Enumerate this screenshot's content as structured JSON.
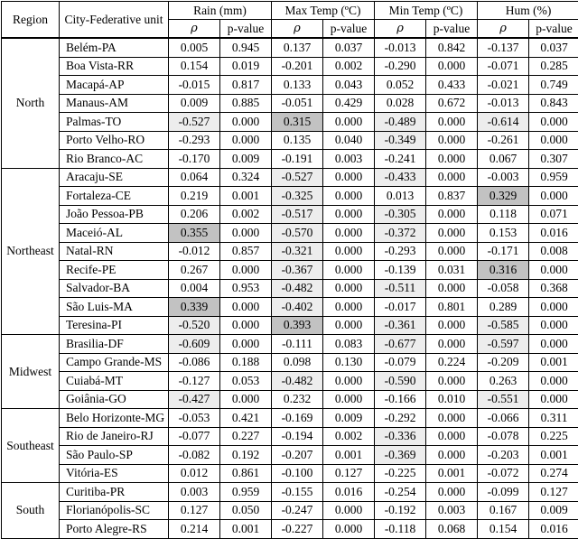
{
  "table": {
    "headers": {
      "region": "Region",
      "city": "City-Federative unit",
      "groups": [
        "Rain (mm)",
        "Max Temp (ºC)",
        "Min Temp (ºC)",
        "Hum (%)"
      ],
      "sub": {
        "rho": "ρ",
        "p": "p-value"
      }
    },
    "colors": {
      "highlight_negative_rho": "#ededed",
      "highlight_positive_rho": "#c2c2c2",
      "border": "#000000",
      "background": "#ffffff"
    },
    "highlight_rule": "rho cells with value <= -0.3 shaded light gray, value >= 0.3 shaded dark gray",
    "regions": [
      {
        "name": "North",
        "rows": [
          {
            "city": "Belém-PA",
            "values": [
              "0.005",
              "0.945",
              "0.137",
              "0.037",
              "-0.013",
              "0.842",
              "-0.137",
              "0.037"
            ]
          },
          {
            "city": "Boa Vista-RR",
            "values": [
              "0.154",
              "0.019",
              "-0.201",
              "0.002",
              "-0.290",
              "0.000",
              "-0.071",
              "0.285"
            ]
          },
          {
            "city": "Macapá-AP",
            "values": [
              "-0.015",
              "0.817",
              "0.133",
              "0.043",
              "0.052",
              "0.433",
              "-0.021",
              "0.749"
            ]
          },
          {
            "city": "Manaus-AM",
            "values": [
              "0.009",
              "0.885",
              "-0.051",
              "0.429",
              "0.028",
              "0.672",
              "-0.013",
              "0.843"
            ]
          },
          {
            "city": "Palmas-TO",
            "values": [
              "-0.527",
              "0.000",
              "0.315",
              "0.000",
              "-0.489",
              "0.000",
              "-0.614",
              "0.000"
            ]
          },
          {
            "city": "Porto Velho-RO",
            "values": [
              "-0.293",
              "0.000",
              "0.135",
              "0.040",
              "-0.349",
              "0.000",
              "-0.261",
              "0.000"
            ]
          },
          {
            "city": "Rio Branco-AC",
            "values": [
              "-0.170",
              "0.009",
              "-0.191",
              "0.003",
              "-0.241",
              "0.000",
              "0.067",
              "0.307"
            ]
          }
        ]
      },
      {
        "name": "Northeast",
        "rows": [
          {
            "city": "Aracaju-SE",
            "values": [
              "0.064",
              "0.324",
              "-0.527",
              "0.000",
              "-0.433",
              "0.000",
              "-0.003",
              "0.959"
            ]
          },
          {
            "city": "Fortaleza-CE",
            "values": [
              "0.219",
              "0.001",
              "-0.325",
              "0.000",
              "0.013",
              "0.837",
              "0.329",
              "0.000"
            ]
          },
          {
            "city": "João Pessoa-PB",
            "values": [
              "0.206",
              "0.002",
              "-0.517",
              "0.000",
              "-0.305",
              "0.000",
              "0.118",
              "0.071"
            ]
          },
          {
            "city": "Maceió-AL",
            "values": [
              "0.355",
              "0.000",
              "-0.570",
              "0.000",
              "-0.372",
              "0.000",
              "0.153",
              "0.016"
            ]
          },
          {
            "city": "Natal-RN",
            "values": [
              "-0.012",
              "0.857",
              "-0.321",
              "0.000",
              "-0.293",
              "0.000",
              "-0.171",
              "0.008"
            ]
          },
          {
            "city": "Recife-PE",
            "values": [
              "0.267",
              "0.000",
              "-0.367",
              "0.000",
              "-0.139",
              "0.031",
              "0.316",
              "0.000"
            ]
          },
          {
            "city": "Salvador-BA",
            "values": [
              "0.004",
              "0.953",
              "-0.482",
              "0.000",
              "-0.511",
              "0.000",
              "-0.058",
              "0.368"
            ]
          },
          {
            "city": "São Luis-MA",
            "values": [
              "0.339",
              "0.000",
              "-0.402",
              "0.000",
              "-0.017",
              "0.801",
              "0.289",
              "0.000"
            ]
          },
          {
            "city": "Teresina-PI",
            "values": [
              "-0.520",
              "0.000",
              "0.393",
              "0.000",
              "-0.361",
              "0.000",
              "-0.585",
              "0.000"
            ]
          }
        ]
      },
      {
        "name": "Midwest",
        "rows": [
          {
            "city": "Brasilia-DF",
            "values": [
              "-0.609",
              "0.000",
              "-0.111",
              "0.083",
              "-0.677",
              "0.000",
              "-0.597",
              "0.000"
            ]
          },
          {
            "city": "Campo Grande-MS",
            "values": [
              "-0.086",
              "0.188",
              "0.098",
              "0.130",
              "-0.079",
              "0.224",
              "-0.209",
              "0.001"
            ]
          },
          {
            "city": "Cuiabá-MT",
            "values": [
              "-0.127",
              "0.053",
              "-0.482",
              "0.000",
              "-0.590",
              "0.000",
              "0.263",
              "0.000"
            ]
          },
          {
            "city": "Goiânia-GO",
            "values": [
              "-0.427",
              "0.000",
              "0.232",
              "0.000",
              "-0.166",
              "0.010",
              "-0.551",
              "0.000"
            ]
          }
        ]
      },
      {
        "name": "Southeast",
        "rows": [
          {
            "city": "Belo Horizonte-MG",
            "values": [
              "-0.053",
              "0.421",
              "-0.169",
              "0.009",
              "-0.292",
              "0.000",
              "-0.066",
              "0.311"
            ]
          },
          {
            "city": "Rio de Janeiro-RJ",
            "values": [
              "-0.077",
              "0.227",
              "-0.194",
              "0.002",
              "-0.336",
              "0.000",
              "-0.078",
              "0.225"
            ]
          },
          {
            "city": "São Paulo-SP",
            "values": [
              "-0.082",
              "0.192",
              "-0.207",
              "0.001",
              "-0.369",
              "0.000",
              "-0.203",
              "0.001"
            ]
          },
          {
            "city": "Vitória-ES",
            "values": [
              "0.012",
              "0.861",
              "-0.100",
              "0.127",
              "-0.225",
              "0.001",
              "-0.072",
              "0.274"
            ]
          }
        ]
      },
      {
        "name": "South",
        "rows": [
          {
            "city": "Curitiba-PR",
            "values": [
              "0.003",
              "0.959",
              "-0.155",
              "0.016",
              "-0.254",
              "0.000",
              "-0.099",
              "0.127"
            ]
          },
          {
            "city": "Florianópolis-SC",
            "values": [
              "0.127",
              "0.050",
              "-0.247",
              "0.000",
              "-0.192",
              "0.003",
              "0.167",
              "0.009"
            ]
          },
          {
            "city": "Porto Alegre-RS",
            "values": [
              "0.214",
              "0.001",
              "-0.227",
              "0.000",
              "-0.118",
              "0.068",
              "0.154",
              "0.016"
            ]
          }
        ]
      }
    ]
  }
}
